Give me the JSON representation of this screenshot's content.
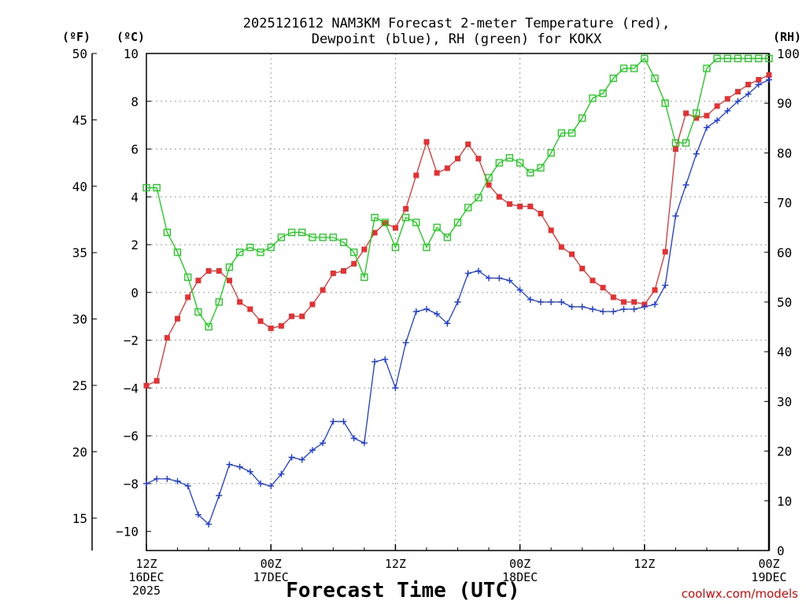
{
  "chart_data": {
    "type": "line",
    "title_lines": [
      "2025121612 NAM3KM Forecast 2-meter Temperature (red),",
      "Dewpoint (blue), RH (green) for KOKX"
    ],
    "ylabel_left_f": "(ºF)",
    "ylabel_left_c": "(ºC)",
    "ylabel_right": "(RH)",
    "xlabel": "Forecast Time (UTC)",
    "credit": "coolwx.com/models",
    "ylim_c": [
      -10.8,
      10
    ],
    "ylim_rh": [
      0,
      100
    ],
    "xlim_hours": [
      0,
      60
    ],
    "c_ticks": [
      "10",
      "8",
      "6",
      "4",
      "2",
      "0",
      "−2",
      "−4",
      "−6",
      "−8",
      "−10"
    ],
    "c_tick_values": [
      10,
      8,
      6,
      4,
      2,
      0,
      -2,
      -4,
      -6,
      -8,
      -10
    ],
    "f_ticks": [
      "50",
      "45",
      "40",
      "35",
      "30",
      "25",
      "20",
      "15"
    ],
    "f_tick_values": [
      50,
      45,
      40,
      35,
      30,
      25,
      20,
      15
    ],
    "rh_ticks": [
      "100",
      "90",
      "80",
      "70",
      "60",
      "50",
      "40",
      "30",
      "20",
      "10",
      "0"
    ],
    "rh_tick_values": [
      100,
      90,
      80,
      70,
      60,
      50,
      40,
      30,
      20,
      10,
      0
    ],
    "x_ticks": [
      {
        "hour": 0,
        "lines": [
          "12Z",
          "16DEC",
          "2025"
        ]
      },
      {
        "hour": 12,
        "lines": [
          "00Z",
          "17DEC"
        ]
      },
      {
        "hour": 24,
        "lines": [
          "12Z"
        ]
      },
      {
        "hour": 36,
        "lines": [
          "00Z",
          "18DEC"
        ]
      },
      {
        "hour": 48,
        "lines": [
          "12Z"
        ]
      },
      {
        "hour": 60,
        "lines": [
          "00Z",
          "19DEC"
        ]
      }
    ],
    "grid_hours": [
      12,
      24,
      36,
      48
    ],
    "grid_c": [
      8,
      6,
      4,
      2,
      0,
      -2,
      -4,
      -6,
      -8
    ],
    "series": [
      {
        "name": "Temperature",
        "color": "#e83030",
        "marker": "filled-square",
        "x": [
          0,
          1,
          2,
          3,
          4,
          5,
          6,
          7,
          8,
          9,
          10,
          11,
          12,
          13,
          14,
          15,
          16,
          17,
          18,
          19,
          20,
          21,
          22,
          23,
          24,
          25,
          26,
          27,
          28,
          29,
          30,
          31,
          32,
          33,
          34,
          35,
          36,
          37,
          38,
          39,
          40,
          41,
          42,
          43,
          44,
          45,
          46,
          47,
          48,
          49,
          50,
          51,
          52,
          53,
          54,
          55,
          56,
          57,
          58,
          59,
          60
        ],
        "values": [
          -3.9,
          -3.7,
          -1.9,
          -1.1,
          -0.2,
          0.5,
          0.9,
          0.9,
          0.5,
          -0.4,
          -0.7,
          -1.2,
          -1.5,
          -1.4,
          -1.0,
          -1.0,
          -0.5,
          0.1,
          0.8,
          0.9,
          1.2,
          1.8,
          2.5,
          2.9,
          2.7,
          3.5,
          4.9,
          6.3,
          5.0,
          5.2,
          5.6,
          6.2,
          5.6,
          4.5,
          4.0,
          3.7,
          3.6,
          3.6,
          3.3,
          2.6,
          1.9,
          1.6,
          1.0,
          0.5,
          0.2,
          -0.2,
          -0.4,
          -0.4,
          -0.5,
          0.1,
          1.7,
          6.0,
          7.5,
          7.3,
          7.4,
          7.8,
          8.1,
          8.4,
          8.7,
          8.9,
          9.1
        ]
      },
      {
        "name": "Dewpoint",
        "color": "#1c3ce0",
        "marker": "plus",
        "x": [
          0,
          1,
          2,
          3,
          4,
          5,
          6,
          7,
          8,
          9,
          10,
          11,
          12,
          13,
          14,
          15,
          16,
          17,
          18,
          19,
          20,
          21,
          22,
          23,
          24,
          25,
          26,
          27,
          28,
          29,
          30,
          31,
          32,
          33,
          34,
          35,
          36,
          37,
          38,
          39,
          40,
          41,
          42,
          43,
          44,
          45,
          46,
          47,
          48,
          49,
          50,
          51,
          52,
          53,
          54,
          55,
          56,
          57,
          58,
          59,
          60
        ],
        "values": [
          -8.0,
          -7.8,
          -7.8,
          -7.9,
          -8.1,
          -9.3,
          -9.7,
          -8.5,
          -7.2,
          -7.3,
          -7.5,
          -8.0,
          -8.1,
          -7.6,
          -6.9,
          -7.0,
          -6.6,
          -6.3,
          -5.4,
          -5.4,
          -6.1,
          -6.3,
          -2.9,
          -2.8,
          -4.0,
          -2.1,
          -0.8,
          -0.7,
          -0.9,
          -1.3,
          -0.4,
          0.8,
          0.9,
          0.6,
          0.6,
          0.5,
          0.1,
          -0.3,
          -0.4,
          -0.4,
          -0.4,
          -0.6,
          -0.6,
          -0.7,
          -0.8,
          -0.8,
          -0.7,
          -0.7,
          -0.6,
          -0.5,
          0.3,
          3.2,
          4.5,
          5.8,
          6.9,
          7.2,
          7.6,
          8.0,
          8.3,
          8.7,
          8.9
        ]
      },
      {
        "name": "RH",
        "color": "#12d012",
        "marker": "open-square",
        "x": [
          0,
          1,
          2,
          3,
          4,
          5,
          6,
          7,
          8,
          9,
          10,
          11,
          12,
          13,
          14,
          15,
          16,
          17,
          18,
          19,
          20,
          21,
          22,
          23,
          24,
          25,
          26,
          27,
          28,
          29,
          30,
          31,
          32,
          33,
          34,
          35,
          36,
          37,
          38,
          39,
          40,
          41,
          42,
          43,
          44,
          45,
          46,
          47,
          48,
          49,
          50,
          51,
          52,
          53,
          54,
          55,
          56,
          57,
          58,
          59,
          60
        ],
        "values": [
          73,
          73,
          64,
          60,
          55,
          48,
          45,
          50,
          57,
          60,
          61,
          60,
          61,
          63,
          64,
          64,
          63,
          63,
          63,
          62,
          60,
          55,
          67,
          66,
          61,
          67,
          66,
          61,
          65,
          63,
          66,
          69,
          71,
          75,
          78,
          79,
          78,
          76,
          77,
          80,
          84,
          84,
          87,
          91,
          92,
          95,
          97,
          97,
          99,
          95,
          90,
          82,
          82,
          88,
          97,
          99,
          99,
          99,
          99,
          99,
          99
        ]
      }
    ]
  }
}
